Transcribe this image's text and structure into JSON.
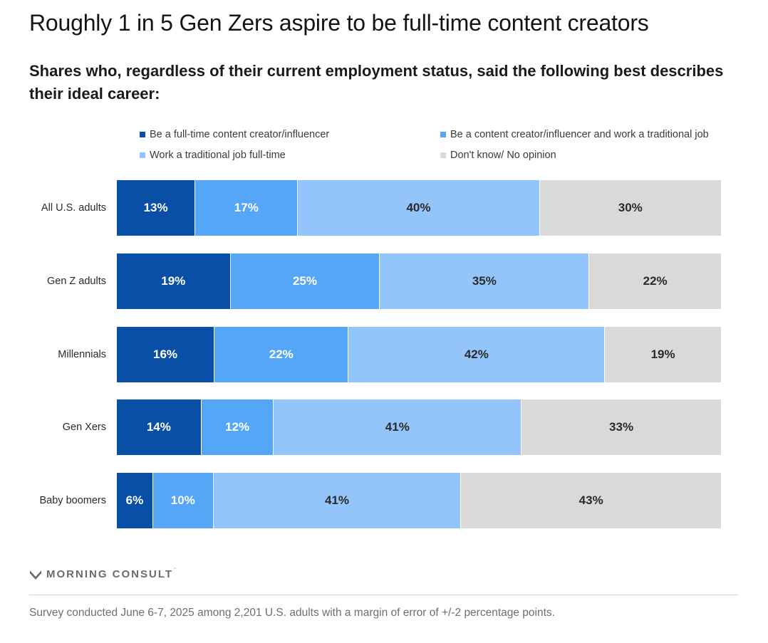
{
  "chart_data": {
    "type": "bar",
    "orientation": "horizontal",
    "stacked": true,
    "title": "Roughly 1 in 5 Gen Zers aspire to be full-time content creators",
    "subtitle": "Shares who, regardless of their current employment status, said the following best describes their ideal career:",
    "categories": [
      "All U.S. adults",
      "Gen Z adults",
      "Millennials",
      "Gen Xers",
      "Baby boomers"
    ],
    "series": [
      {
        "name": "Be a full-time content creator/influencer",
        "color": "#0a4fa6",
        "label_color": "#ffffff",
        "values": [
          13,
          19,
          16,
          14,
          6
        ]
      },
      {
        "name": "Be a content creator/influencer and work a traditional job",
        "color": "#56a6f7",
        "label_color": "#ffffff",
        "values": [
          17,
          25,
          22,
          12,
          10
        ]
      },
      {
        "name": "Work a traditional job full-time",
        "color": "#93c5fb",
        "label_color": "#2b2b2b",
        "values": [
          40,
          35,
          42,
          41,
          41
        ]
      },
      {
        "name": "Don't know/ No opinion",
        "color": "#d9d9d9",
        "label_color": "#2b2b2b",
        "values": [
          30,
          22,
          19,
          33,
          43
        ]
      }
    ],
    "value_suffix": "%",
    "legend_position": "top",
    "grid": false
  },
  "brand": {
    "name": "MORNING CONSULT",
    "mark": "°"
  },
  "footnote": "Survey conducted June 6-7, 2025 among 2,201 U.S. adults with a margin of error of +/-2 percentage points."
}
